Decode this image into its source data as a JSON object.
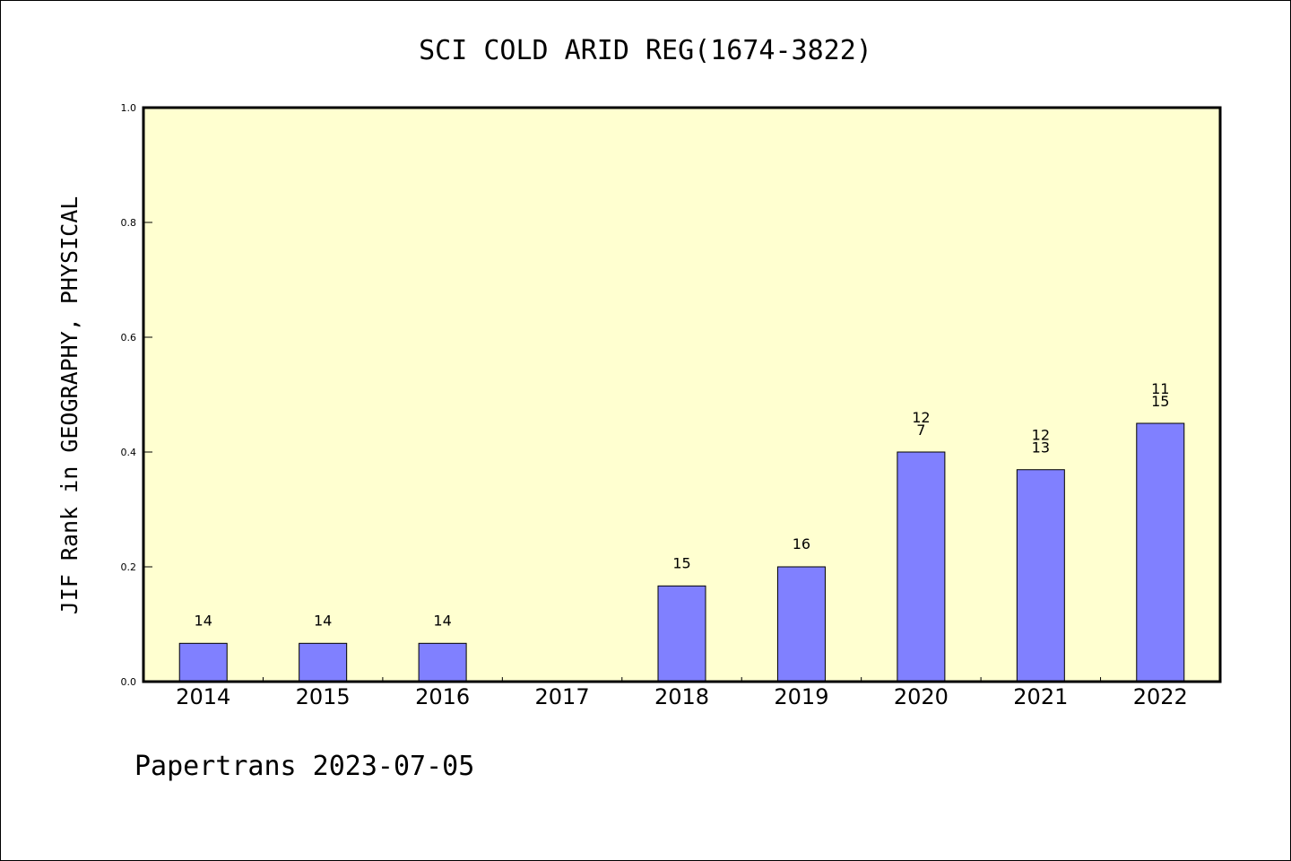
{
  "chart_data": {
    "type": "bar",
    "title": "SCI COLD ARID REG(1674-3822)",
    "ylabel": "JIF Rank in GEOGRAPHY, PHYSICAL",
    "xlabel": "",
    "categories": [
      "2014",
      "2015",
      "2016",
      "2017",
      "2018",
      "2019",
      "2020",
      "2021",
      "2022"
    ],
    "values": [
      0.0667,
      0.0667,
      0.0667,
      null,
      0.1667,
      0.2,
      0.4,
      0.3692,
      0.45
    ],
    "bar_labels": [
      [
        "14"
      ],
      [
        "14"
      ],
      [
        "14"
      ],
      [],
      [
        "15"
      ],
      [
        "16"
      ],
      [
        "12",
        "7"
      ],
      [
        "12",
        "13"
      ],
      [
        "11",
        "15"
      ]
    ],
    "ylim": [
      0,
      1.0
    ],
    "yticks": [
      "0.0",
      "0.2",
      "0.4",
      "0.6",
      "0.8",
      "1.0"
    ],
    "grid": false,
    "colors": {
      "bar": "#8080ff",
      "plot_background": "#ffffd0"
    }
  },
  "footer": "Papertrans 2023-07-05"
}
